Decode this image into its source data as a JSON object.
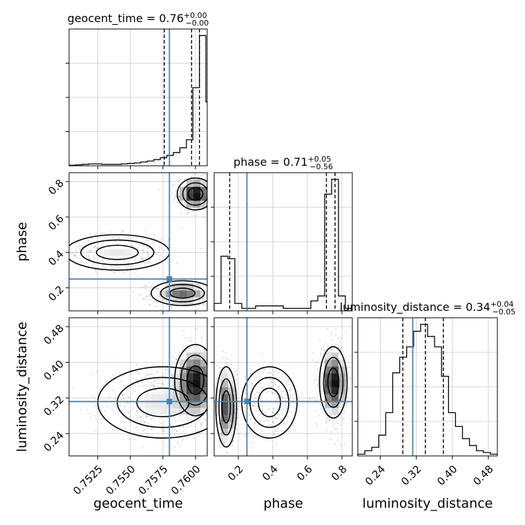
{
  "chart_data": {
    "type": "corner",
    "parameters": [
      "geocent_time",
      "phase",
      "luminosity_distance"
    ],
    "truths": {
      "geocent_time": 0.758,
      "phase": 0.25,
      "luminosity_distance": 0.312
    },
    "colors": {
      "truth": "#4682b4",
      "hist": "#000000",
      "grid": "#c8c8c8",
      "quantile": "#000000"
    },
    "grid": true,
    "panels": [
      {
        "id": "hist-geocent_time",
        "type": "histogram",
        "parameter": "geocent_time",
        "title": {
          "base": "geocent_time = 0.76",
          "sup": "+0.00",
          "sub": "−0.00"
        },
        "xlim": [
          0.7503,
          0.7609
        ],
        "quantiles": [
          0.7576,
          0.7597,
          0.7603
        ],
        "bin_edges": [
          0.7503,
          0.7508,
          0.7513,
          0.7518,
          0.7523,
          0.7528,
          0.7533,
          0.7538,
          0.7543,
          0.7548,
          0.7553,
          0.7558,
          0.7563,
          0.7568,
          0.7573,
          0.7578,
          0.7583,
          0.7588,
          0.7593,
          0.7598,
          0.7603,
          0.7608,
          0.7609
        ],
        "counts": [
          1,
          2,
          3,
          4,
          4,
          3,
          3,
          3,
          4,
          5,
          6,
          8,
          10,
          13,
          17,
          22,
          28,
          38,
          55,
          165,
          275,
          135
        ]
      },
      {
        "id": "scatter-phase-vs-geocent_time",
        "type": "2d-density",
        "x": "geocent_time",
        "y": "phase",
        "xlim": [
          0.7503,
          0.7609
        ],
        "ylim": [
          0.07,
          0.85
        ],
        "modes": [
          {
            "x": 0.76,
            "y": 0.73,
            "sx": 0.0007,
            "sy": 0.045,
            "w": 0.3
          },
          {
            "x": 0.759,
            "y": 0.17,
            "sx": 0.0012,
            "sy": 0.035,
            "w": 0.25
          },
          {
            "x": 0.754,
            "y": 0.4,
            "sx": 0.002,
            "sy": 0.05,
            "w": 0.2
          }
        ]
      },
      {
        "id": "hist-phase",
        "type": "histogram",
        "parameter": "phase",
        "title": {
          "base": "phase = 0.71",
          "sup": "+0.05",
          "sub": "−0.56"
        },
        "xlim": [
          0.06,
          0.86
        ],
        "quantiles": [
          0.15,
          0.71,
          0.76
        ],
        "bin_edges": [
          0.06,
          0.1,
          0.14,
          0.18,
          0.22,
          0.26,
          0.3,
          0.34,
          0.38,
          0.42,
          0.46,
          0.5,
          0.54,
          0.58,
          0.62,
          0.66,
          0.7,
          0.74,
          0.78,
          0.82,
          0.86
        ],
        "counts": [
          3,
          22,
          21,
          3,
          1,
          1,
          2,
          2,
          2,
          2,
          1,
          1,
          1,
          1,
          4,
          6,
          47,
          53,
          6,
          1
        ]
      },
      {
        "id": "scatter-luminosity_distance-vs-geocent_time",
        "type": "2d-density",
        "x": "geocent_time",
        "y": "luminosity_distance",
        "xlim": [
          0.7503,
          0.7609
        ],
        "ylim": [
          0.19,
          0.5
        ],
        "modes": [
          {
            "x": 0.76,
            "y": 0.36,
            "sx": 0.0008,
            "sy": 0.04,
            "w": 0.45
          },
          {
            "x": 0.7575,
            "y": 0.31,
            "sx": 0.0025,
            "sy": 0.04,
            "w": 0.35
          }
        ]
      },
      {
        "id": "scatter-luminosity_distance-vs-phase",
        "type": "2d-density",
        "x": "phase",
        "y": "luminosity_distance",
        "xlim": [
          0.06,
          0.86
        ],
        "ylim": [
          0.19,
          0.5
        ],
        "modes": [
          {
            "x": 0.75,
            "y": 0.355,
            "sx": 0.04,
            "sy": 0.04,
            "w": 0.45
          },
          {
            "x": 0.13,
            "y": 0.3,
            "sx": 0.03,
            "sy": 0.045,
            "w": 0.3
          },
          {
            "x": 0.38,
            "y": 0.31,
            "sx": 0.08,
            "sy": 0.04,
            "w": 0.15
          }
        ]
      },
      {
        "id": "hist-luminosity_distance",
        "type": "histogram",
        "parameter": "luminosity_distance",
        "title": {
          "base": "luminosity_distance = 0.34",
          "sup": "+0.04",
          "sub": "−0.05"
        },
        "xlim": [
          0.19,
          0.5
        ],
        "quantiles": [
          0.29,
          0.34,
          0.38
        ],
        "bin_edges": [
          0.19,
          0.2055,
          0.221,
          0.2365,
          0.252,
          0.2675,
          0.283,
          0.2985,
          0.314,
          0.3295,
          0.345,
          0.3605,
          0.376,
          0.3915,
          0.407,
          0.4225,
          0.438,
          0.4535,
          0.469,
          0.4845,
          0.5
        ],
        "counts": [
          1,
          3,
          5,
          12,
          25,
          48,
          57,
          63,
          72,
          76,
          69,
          63,
          46,
          25,
          17,
          10,
          6,
          3,
          2,
          1
        ]
      }
    ],
    "axes": {
      "geocent_time": {
        "xlabel": "geocent_time",
        "xticks": [
          "0.7525",
          "0.7550",
          "0.7575",
          "0.7600"
        ],
        "xtick_values": [
          0.7525,
          0.755,
          0.7575,
          0.76
        ]
      },
      "phase": {
        "xlabel": "phase",
        "ylabel": "phase",
        "xticks": [
          "0.2",
          "0.4",
          "0.6",
          "0.8"
        ],
        "xtick_values": [
          0.2,
          0.4,
          0.6,
          0.8
        ],
        "yticks": [
          "0.2",
          "0.4",
          "0.6",
          "0.8"
        ],
        "ytick_values": [
          0.2,
          0.4,
          0.6,
          0.8
        ]
      },
      "luminosity_distance": {
        "xlabel": "luminosity_distance",
        "ylabel": "luminosity_distance",
        "xticks": [
          "0.24",
          "0.32",
          "0.40",
          "0.48"
        ],
        "xtick_values": [
          0.24,
          0.32,
          0.4,
          0.48
        ],
        "yticks": [
          "0.24",
          "0.32",
          "0.40",
          "0.48"
        ],
        "ytick_values": [
          0.24,
          0.32,
          0.4,
          0.48
        ]
      }
    }
  }
}
